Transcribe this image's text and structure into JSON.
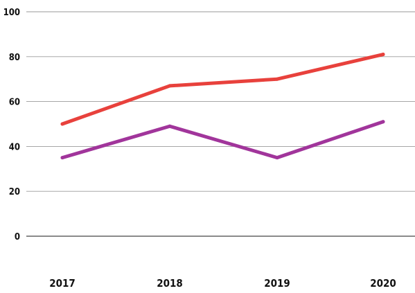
{
  "chart_data": {
    "type": "line",
    "title": "",
    "xlabel": "",
    "ylabel": "",
    "categories": [
      "2017",
      "2018",
      "2019",
      "2020"
    ],
    "ylim": [
      0,
      100
    ],
    "yticks": [
      0,
      20,
      40,
      60,
      80,
      100
    ],
    "grid": true,
    "legend": "none",
    "series": [
      {
        "values": [
          50,
          67,
          70,
          81
        ],
        "color": "#e8413c"
      },
      {
        "values": [
          35,
          49,
          35,
          51
        ],
        "color": "#a1359b"
      }
    ]
  }
}
